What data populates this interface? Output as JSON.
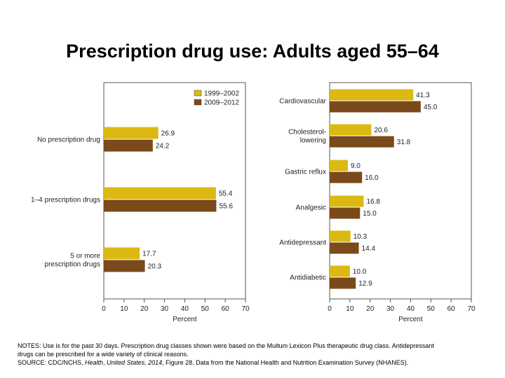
{
  "title": "Prescription drug use: Adults aged 55–64",
  "notes": {
    "line1": "NOTES: Use is for the past 30 days. Prescription drug classes shown were based on the Multum Lexicon Plus therapeutic drug class. Antidepressant",
    "line2": "drugs can be prescribed for a wide variety of clinical reasons.",
    "source_prefix": "SOURCE: CDC/NCHS, ",
    "source_italic1": "Health",
    "source_comma": ", ",
    "source_italic2": "United States, 2014",
    "source_suffix": ", Figure 28. Data from the National Health and Nutrition Examination Survey (NHANES)."
  },
  "colors": {
    "series1": "#dbb912",
    "series2": "#7b4a1a",
    "border": "#555555"
  },
  "chart_data": [
    {
      "type": "bar",
      "orientation": "horizontal",
      "categories": [
        "No prescription drug",
        "1–4 prescription drugs",
        "5 or more prescription drugs"
      ],
      "series": [
        {
          "name": "1999–2002",
          "values": [
            26.9,
            55.4,
            17.7
          ]
        },
        {
          "name": "2009–2012",
          "values": [
            24.2,
            55.6,
            20.3
          ]
        }
      ],
      "xlabel": "Percent",
      "xlim": [
        0,
        70
      ],
      "xticks": [
        0,
        10,
        20,
        30,
        40,
        50,
        60,
        70
      ],
      "legend": "top-right"
    },
    {
      "type": "bar",
      "orientation": "horizontal",
      "categories": [
        "Cardiovascular",
        "Cholesterol-lowering",
        "Gastric reflux",
        "Analgesic",
        "Antidepressant",
        "Antidiabetic"
      ],
      "series": [
        {
          "name": "1999–2002",
          "values": [
            41.3,
            20.6,
            9.0,
            16.8,
            10.3,
            10.0
          ]
        },
        {
          "name": "2009–2012",
          "values": [
            45.0,
            31.8,
            16.0,
            15.0,
            14.4,
            12.9
          ]
        }
      ],
      "xlabel": "Percent",
      "xlim": [
        0,
        70
      ],
      "xticks": [
        0,
        10,
        20,
        30,
        40,
        50,
        60,
        70
      ]
    }
  ]
}
